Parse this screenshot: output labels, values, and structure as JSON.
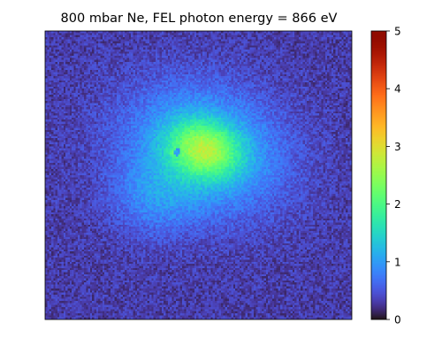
{
  "chart_data": {
    "type": "heatmap",
    "title": "800 mbar Ne, FEL photon energy = 866 eV",
    "xlabel": "",
    "ylabel": "",
    "axes_ticks_visible": false,
    "colormap": "turbo",
    "colorbar": {
      "vmin": 0,
      "vmax": 5,
      "ticks": [
        0,
        1,
        2,
        3,
        4,
        5
      ],
      "tick_labels": [
        "0",
        "1",
        "2",
        "3",
        "4",
        "5"
      ]
    },
    "image": {
      "grid": "about 150 x 140 pixels",
      "background_level": 0.3,
      "blob": {
        "center_fraction": [
          0.52,
          0.41
        ],
        "peak_value": 2.6,
        "shape": "asymmetric cloud, extends toward lower-left"
      },
      "dark_spot": {
        "center_fraction": [
          0.43,
          0.42
        ],
        "value": 1.0,
        "note": "small ring-like hole left of the peak"
      }
    }
  }
}
